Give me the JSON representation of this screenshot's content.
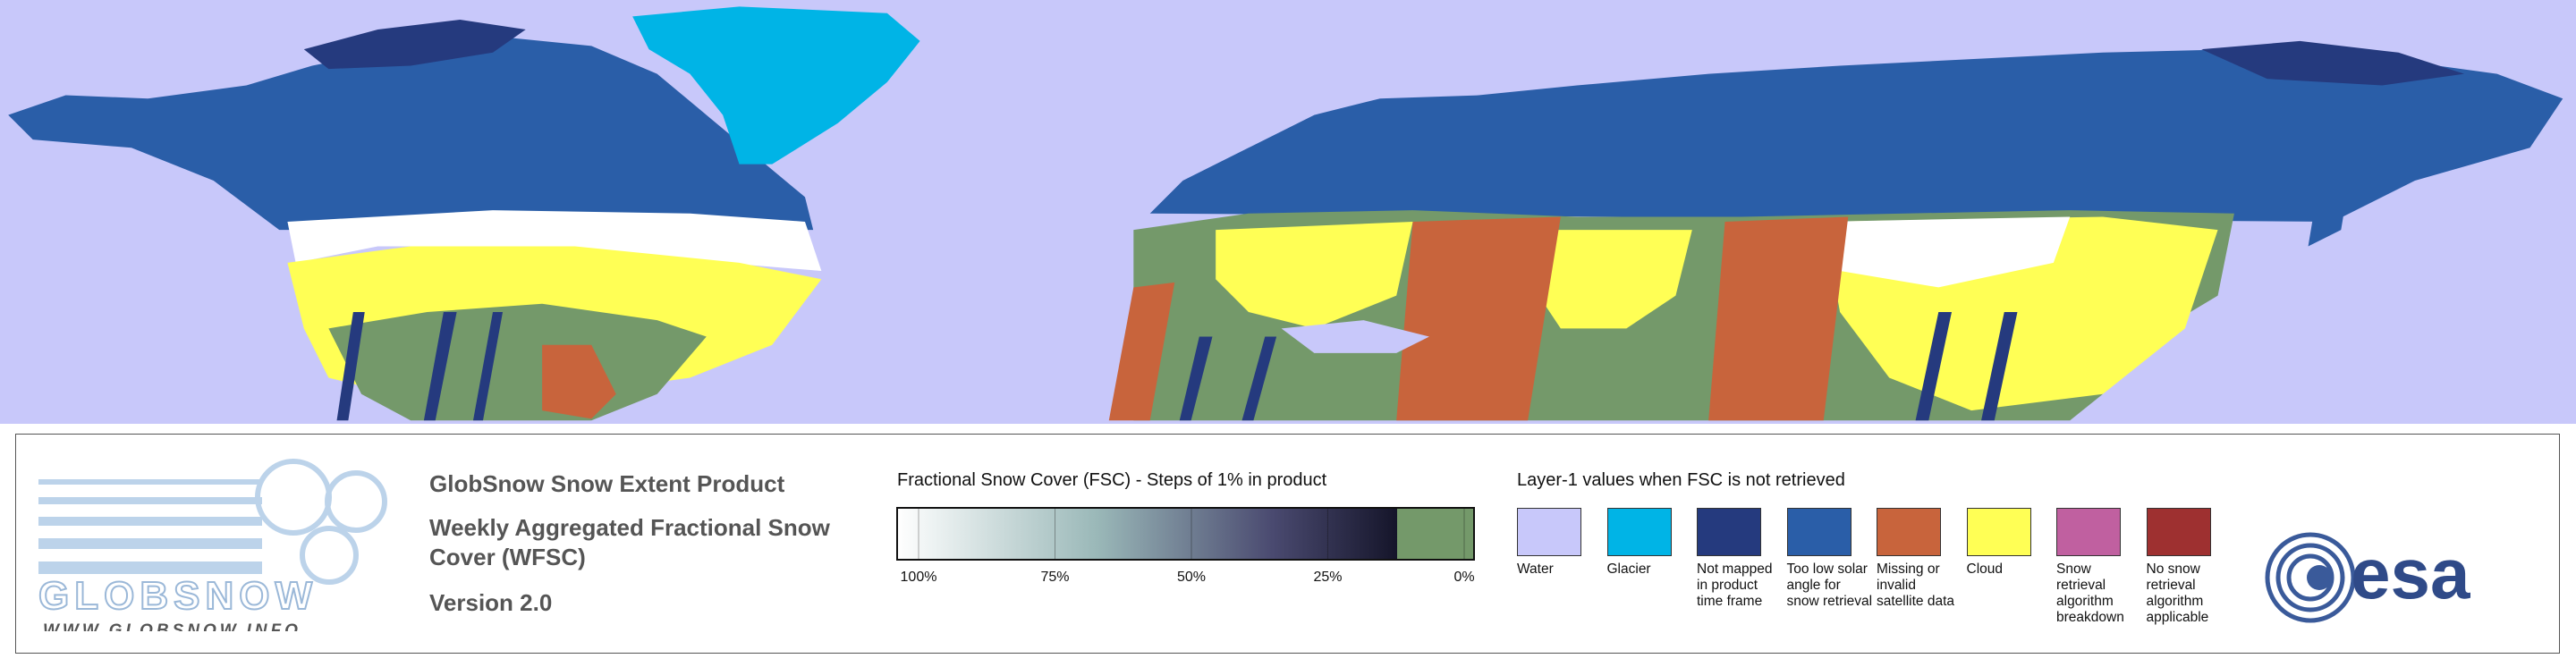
{
  "logo": {
    "name": "GLOBSNOW",
    "url": "WWW.GLOBSNOW.INFO"
  },
  "product": {
    "title": "GlobSnow Snow Extent Product",
    "subtitle": "Weekly Aggregated Fractional Snow Cover (WFSC)",
    "version": "Version 2.0"
  },
  "fsc_legend": {
    "title": "Fractional Snow Cover (FSC) - Steps of 1% in product",
    "ticks": [
      "100%",
      "75%",
      "50%",
      "25%",
      "0%"
    ]
  },
  "layer1_legend": {
    "title": "Layer-1 values when FSC is not retrieved",
    "items": [
      {
        "label": "Water",
        "color": "#c8c8fa"
      },
      {
        "label": "Glacier",
        "color": "#00b4e6"
      },
      {
        "label": "Not mapped in product time frame",
        "color": "#253a7e"
      },
      {
        "label": "Too low solar angle for snow retrieval",
        "color": "#2a5ea8"
      },
      {
        "label": "Missing or invalid satellite data",
        "color": "#c8643c"
      },
      {
        "label": "Cloud",
        "color": "#ffff55"
      },
      {
        "label": "Snow retrieval algorithm breakdown",
        "color": "#c060a0"
      },
      {
        "label": "No snow retrieval algorithm applicable",
        "color": "#9e3030"
      }
    ]
  },
  "agency": "esa"
}
